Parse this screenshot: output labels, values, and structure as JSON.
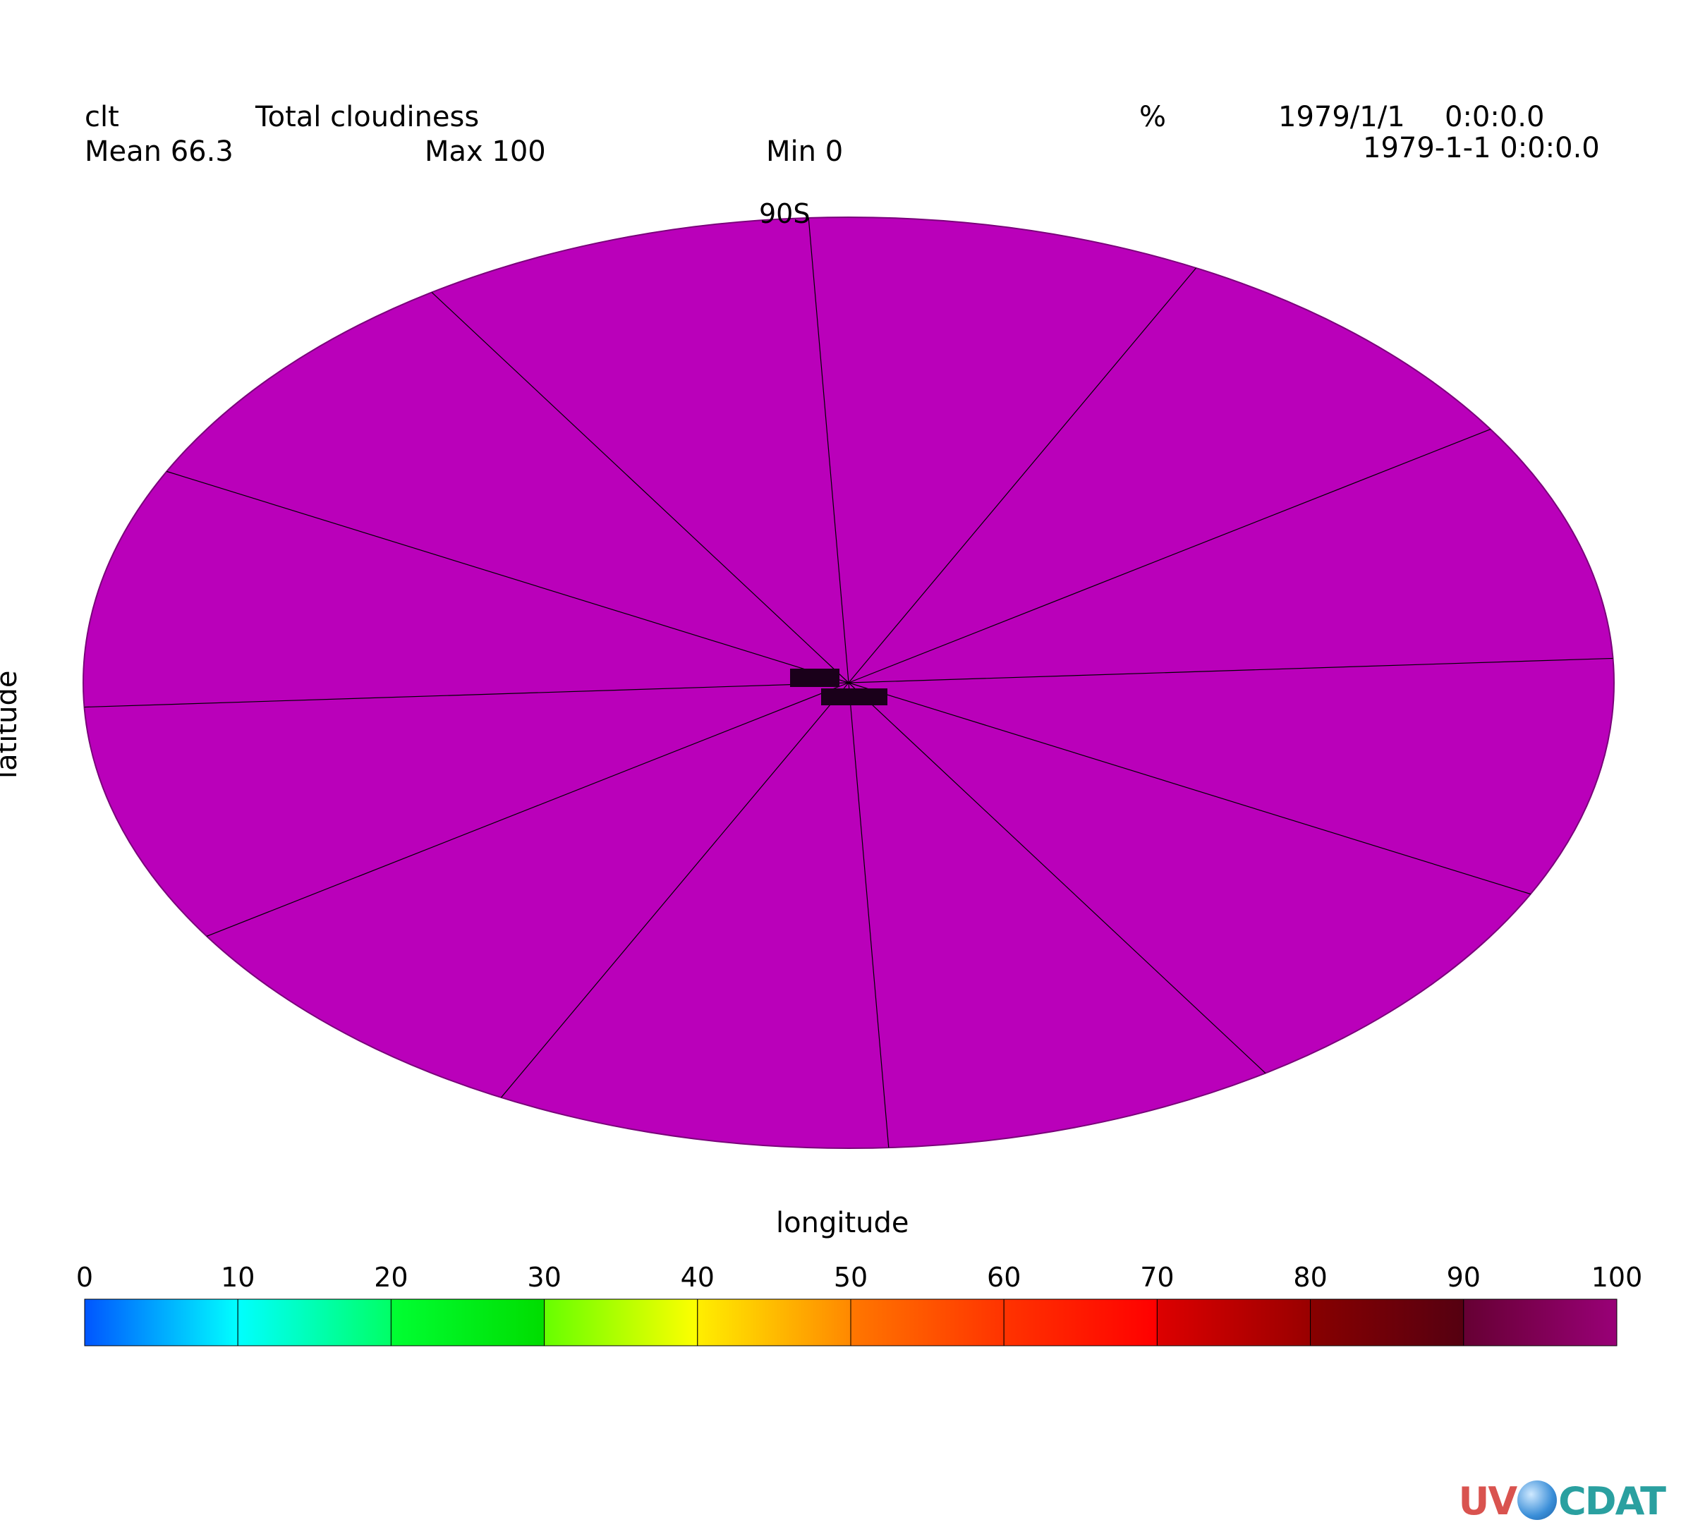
{
  "header": {
    "var_name": "clt",
    "long_name": "Total cloudiness",
    "units": "%",
    "date": "1979/1/1",
    "time": "0:0:0.0",
    "datetime": "1979-1-1 0:0:0.0",
    "mean": "Mean 66.3",
    "max": "Max 100",
    "min": "Min 0"
  },
  "chart_data": {
    "type": "heatmap",
    "projection": "polar",
    "field_value": 100,
    "fill_color": "#BA00BA",
    "pole_label": "90S",
    "xlabel": "longitude",
    "ylabel": "latitude",
    "meridians": 12,
    "colorbar": {
      "ticks": [
        "0",
        "10",
        "20",
        "30",
        "40",
        "50",
        "60",
        "70",
        "80",
        "90",
        "100"
      ],
      "levels": [
        0,
        10,
        20,
        30,
        40,
        50,
        60,
        70,
        80,
        90,
        100
      ],
      "colors": [
        [
          "#0055ff",
          "#00ffff"
        ],
        [
          "#00ffff",
          "#00ff66"
        ],
        [
          "#00ff33",
          "#00dd00"
        ],
        [
          "#66ff00",
          "#ffff00"
        ],
        [
          "#ffee00",
          "#ff8800"
        ],
        [
          "#ff7700",
          "#ff3300"
        ],
        [
          "#ff3300",
          "#ff0000"
        ],
        [
          "#dd0000",
          "#990000"
        ],
        [
          "#880000",
          "#550011"
        ],
        [
          "#660033",
          "#990077"
        ],
        [
          "#aa0088",
          "#bb00bb"
        ]
      ]
    }
  },
  "logo": {
    "left": "UV",
    "right": "CDAT"
  }
}
